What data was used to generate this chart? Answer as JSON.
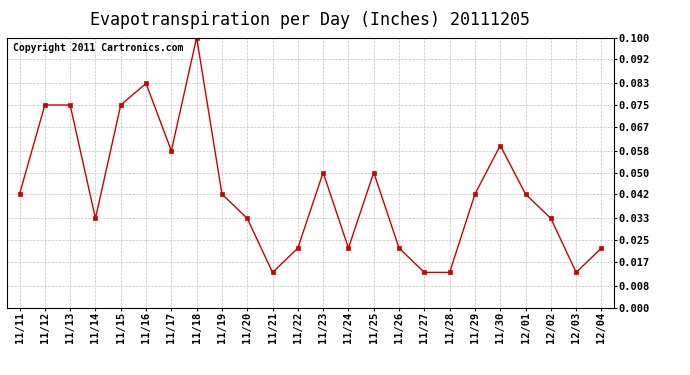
{
  "title": "Evapotranspiration per Day (Inches) 20111205",
  "copyright": "Copyright 2011 Cartronics.com",
  "labels": [
    "11/11",
    "11/12",
    "11/13",
    "11/14",
    "11/15",
    "11/16",
    "11/17",
    "11/18",
    "11/19",
    "11/20",
    "11/21",
    "11/22",
    "11/23",
    "11/24",
    "11/25",
    "11/26",
    "11/27",
    "11/28",
    "11/29",
    "11/30",
    "12/01",
    "12/02",
    "12/03",
    "12/04"
  ],
  "values": [
    0.042,
    0.075,
    0.075,
    0.033,
    0.075,
    0.083,
    0.058,
    0.1,
    0.042,
    0.033,
    0.013,
    0.022,
    0.05,
    0.022,
    0.05,
    0.022,
    0.013,
    0.013,
    0.042,
    0.06,
    0.042,
    0.033,
    0.013,
    0.022
  ],
  "line_color": "#cc0000",
  "marker": "s",
  "marker_size": 3,
  "ylim": [
    0.0,
    0.1
  ],
  "yticks": [
    0.0,
    0.008,
    0.017,
    0.025,
    0.033,
    0.042,
    0.05,
    0.058,
    0.067,
    0.075,
    0.083,
    0.092,
    0.1
  ],
  "bg_color": "#ffffff",
  "plot_bg_color": "#ffffff",
  "grid_color": "#bbbbbb",
  "title_fontsize": 12,
  "copyright_fontsize": 7,
  "tick_fontsize": 7.5
}
